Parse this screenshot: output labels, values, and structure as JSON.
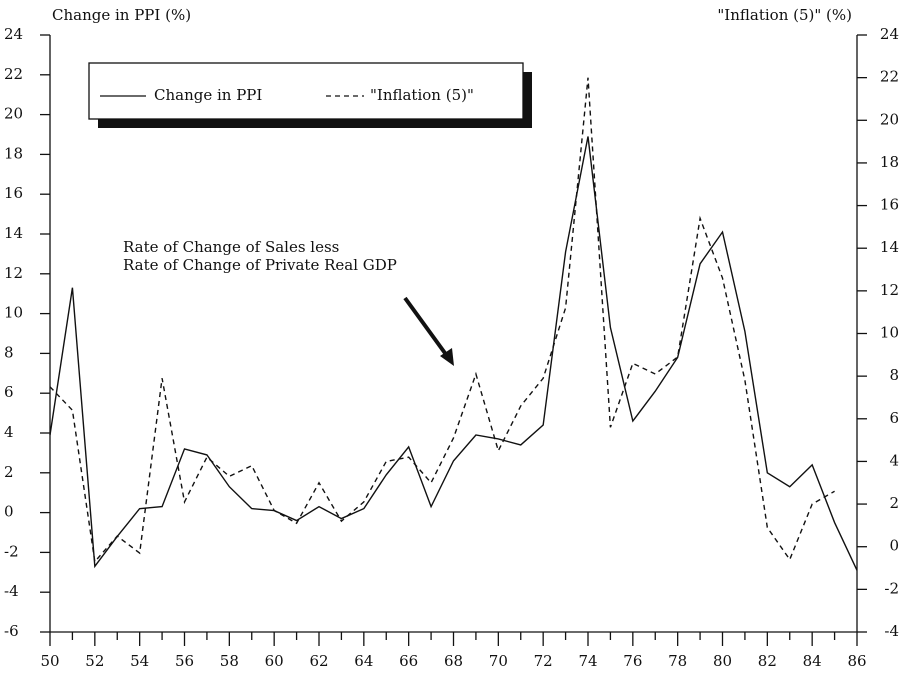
{
  "chart_data": {
    "type": "line",
    "y_label": "Change in PPI (%)",
    "y2_label": "\"Inflation (5)\" (%)",
    "annotation": [
      "Rate of Change of Sales less",
      "Rate of Change of Private Real GDP"
    ],
    "xlim": [
      50,
      86
    ],
    "xticks": [
      50,
      52,
      54,
      56,
      58,
      60,
      62,
      64,
      66,
      68,
      70,
      72,
      74,
      76,
      78,
      80,
      82,
      84,
      86
    ],
    "ylim": [
      -6,
      24
    ],
    "yticks": [
      -6,
      -4,
      -2,
      0,
      2,
      4,
      6,
      8,
      10,
      12,
      14,
      16,
      18,
      20,
      22,
      24
    ],
    "y2lim": [
      -4,
      24
    ],
    "y2ticks": [
      -4,
      -2,
      0,
      2,
      4,
      6,
      8,
      10,
      12,
      14,
      16,
      18,
      20,
      22,
      24
    ],
    "legend": "upper left",
    "series": [
      {
        "name": "Change in PPI",
        "color": "#111111",
        "dash": false,
        "x": [
          50,
          51,
          52,
          53,
          54,
          55,
          56,
          57,
          58,
          59,
          60,
          61,
          62,
          63,
          64,
          65,
          66,
          67,
          68,
          69,
          70,
          71,
          72,
          73,
          74,
          75,
          76,
          77,
          78,
          79,
          80,
          81,
          82,
          83,
          84,
          85,
          86
        ],
        "values": [
          3.9,
          11.3,
          -2.7,
          -1.2,
          0.2,
          0.3,
          3.2,
          2.9,
          1.3,
          0.2,
          0.1,
          -0.4,
          0.3,
          -0.3,
          0.2,
          1.9,
          3.3,
          0.3,
          2.6,
          3.9,
          3.7,
          3.4,
          4.4,
          13.1,
          18.9,
          9.3,
          4.6,
          6.1,
          7.8,
          12.5,
          14.1,
          9.1,
          2.0,
          1.3,
          2.4,
          -0.5,
          -2.9
        ]
      },
      {
        "name": "\"Inflation (5)\"",
        "color": "#111111",
        "dash": true,
        "axis": "y2",
        "x": [
          50,
          51,
          52,
          53,
          54,
          55,
          56,
          57,
          58,
          59,
          60,
          61,
          62,
          63,
          64,
          65,
          66,
          67,
          68,
          69,
          70,
          71,
          72,
          73,
          74,
          75,
          76,
          77,
          78,
          79,
          80,
          81,
          82,
          83,
          84,
          85
        ],
        "values": [
          7.5,
          6.4,
          -0.7,
          0.5,
          -0.3,
          7.9,
          2.1,
          4.2,
          3.3,
          3.8,
          1.7,
          1.1,
          3.0,
          1.2,
          2.1,
          4.0,
          4.2,
          3.0,
          5.1,
          8.1,
          4.5,
          6.6,
          7.9,
          11.2,
          22.0,
          5.6,
          8.6,
          8.1,
          8.9,
          15.4,
          12.6,
          7.8,
          0.9,
          -0.6,
          2.0,
          2.6
        ]
      }
    ]
  }
}
